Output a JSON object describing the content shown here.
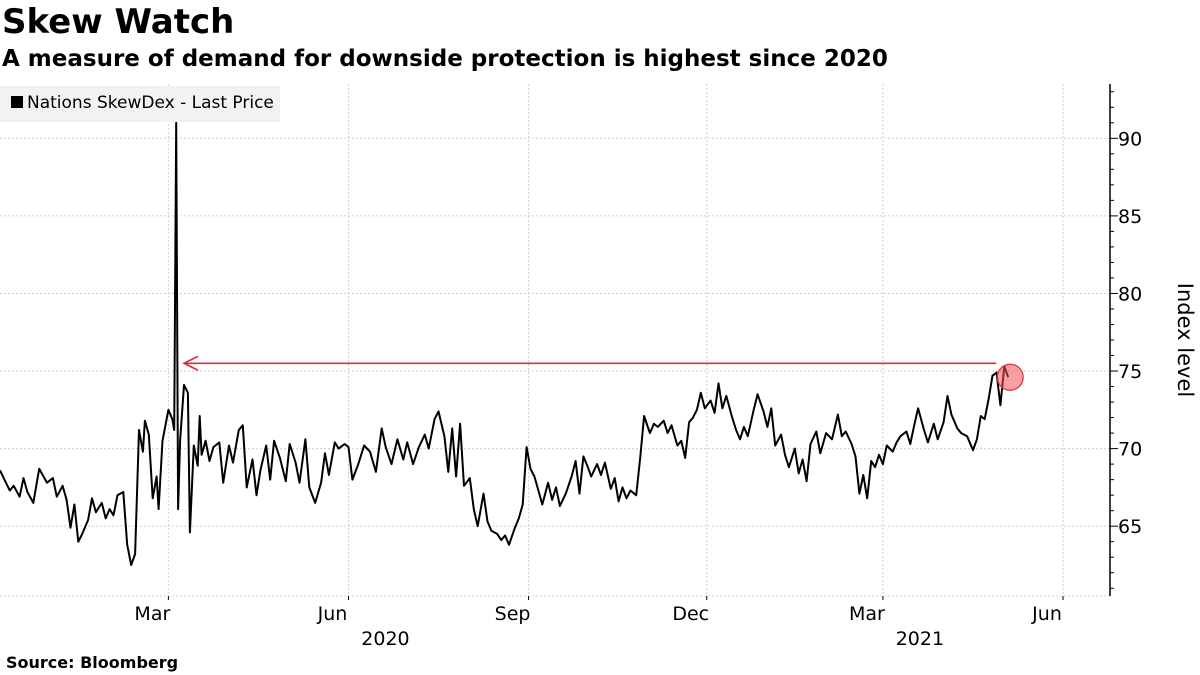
{
  "title": "Skew Watch",
  "subtitle": "A measure of demand for downside protection is highest since 2020",
  "source": "Source: Bloomberg",
  "chart_data": {
    "type": "line",
    "ylabel": "Index level",
    "ylim": [
      60.5,
      93.5
    ],
    "yticks": [
      65,
      70,
      75,
      80,
      85,
      90
    ],
    "xlim": [
      "2019-12-06",
      "2021-06-25"
    ],
    "xticks": [
      {
        "date": "2020-03-01",
        "label": "Mar"
      },
      {
        "date": "2020-06-01",
        "label": "Jun"
      },
      {
        "date": "2020-09-01",
        "label": "Sep"
      },
      {
        "date": "2020-12-01",
        "label": "Dec"
      },
      {
        "date": "2021-03-01",
        "label": "Mar"
      },
      {
        "date": "2021-06-01",
        "label": "Jun"
      }
    ],
    "year_labels": [
      {
        "date": "2020-06-01",
        "label": "2020"
      },
      {
        "date": "2021-03-01",
        "label": "2021"
      }
    ],
    "grid": true,
    "legend_position": "top-left",
    "series": [
      {
        "name": "Nations SkewDex - Last Price",
        "color": "#000000",
        "points": [
          [
            "2019-12-06",
            68.6
          ],
          [
            "2019-12-09",
            67.8
          ],
          [
            "2019-12-11",
            67.3
          ],
          [
            "2019-12-13",
            67.6
          ],
          [
            "2019-12-16",
            66.9
          ],
          [
            "2019-12-18",
            68.1
          ],
          [
            "2019-12-20",
            67.2
          ],
          [
            "2019-12-23",
            66.5
          ],
          [
            "2019-12-26",
            68.7
          ],
          [
            "2019-12-30",
            67.8
          ],
          [
            "2020-01-02",
            68.1
          ],
          [
            "2020-01-04",
            66.9
          ],
          [
            "2020-01-07",
            67.6
          ],
          [
            "2020-01-09",
            66.7
          ],
          [
            "2020-01-11",
            64.9
          ],
          [
            "2020-01-13",
            66.4
          ],
          [
            "2020-01-15",
            64.0
          ],
          [
            "2020-01-17",
            64.5
          ],
          [
            "2020-01-20",
            65.4
          ],
          [
            "2020-01-22",
            66.8
          ],
          [
            "2020-01-24",
            65.9
          ],
          [
            "2020-01-27",
            66.5
          ],
          [
            "2020-01-29",
            65.5
          ],
          [
            "2020-01-31",
            66.1
          ],
          [
            "2020-02-02",
            65.7
          ],
          [
            "2020-02-04",
            67.0
          ],
          [
            "2020-02-07",
            67.2
          ],
          [
            "2020-02-09",
            63.8
          ],
          [
            "2020-02-11",
            62.5
          ],
          [
            "2020-02-13",
            63.2
          ],
          [
            "2020-02-15",
            71.2
          ],
          [
            "2020-02-17",
            69.8
          ],
          [
            "2020-02-18",
            71.8
          ],
          [
            "2020-02-20",
            70.9
          ],
          [
            "2020-02-22",
            66.8
          ],
          [
            "2020-02-24",
            68.2
          ],
          [
            "2020-02-25",
            66.1
          ],
          [
            "2020-02-27",
            70.5
          ],
          [
            "2020-03-01",
            72.5
          ],
          [
            "2020-03-03",
            71.9
          ],
          [
            "2020-03-04",
            71.2
          ],
          [
            "2020-03-05",
            91.0
          ],
          [
            "2020-03-06",
            66.1
          ],
          [
            "2020-03-07",
            70.5
          ],
          [
            "2020-03-09",
            74.1
          ],
          [
            "2020-03-11",
            73.6
          ],
          [
            "2020-03-12",
            64.6
          ],
          [
            "2020-03-14",
            70.2
          ],
          [
            "2020-03-16",
            68.9
          ],
          [
            "2020-03-17",
            72.1
          ],
          [
            "2020-03-18",
            69.6
          ],
          [
            "2020-03-20",
            70.5
          ],
          [
            "2020-03-22",
            69.2
          ],
          [
            "2020-03-24",
            70.1
          ],
          [
            "2020-03-27",
            70.4
          ],
          [
            "2020-03-29",
            67.8
          ],
          [
            "2020-04-01",
            70.2
          ],
          [
            "2020-04-03",
            69.1
          ],
          [
            "2020-04-06",
            71.2
          ],
          [
            "2020-04-08",
            71.5
          ],
          [
            "2020-04-10",
            67.5
          ],
          [
            "2020-04-13",
            69.3
          ],
          [
            "2020-04-15",
            67.0
          ],
          [
            "2020-04-17",
            68.6
          ],
          [
            "2020-04-20",
            70.2
          ],
          [
            "2020-04-22",
            68.0
          ],
          [
            "2020-04-24",
            70.5
          ],
          [
            "2020-04-27",
            69.4
          ],
          [
            "2020-04-30",
            67.9
          ],
          [
            "2020-05-02",
            70.3
          ],
          [
            "2020-05-05",
            69.1
          ],
          [
            "2020-05-07",
            67.8
          ],
          [
            "2020-05-10",
            70.6
          ],
          [
            "2020-05-12",
            67.5
          ],
          [
            "2020-05-15",
            66.5
          ],
          [
            "2020-05-18",
            67.8
          ],
          [
            "2020-05-20",
            69.7
          ],
          [
            "2020-05-22",
            68.3
          ],
          [
            "2020-05-25",
            70.4
          ],
          [
            "2020-05-27",
            70.0
          ],
          [
            "2020-05-30",
            70.3
          ],
          [
            "2020-06-01",
            70.1
          ],
          [
            "2020-06-03",
            68.0
          ],
          [
            "2020-06-06",
            69.0
          ],
          [
            "2020-06-09",
            70.2
          ],
          [
            "2020-06-12",
            69.8
          ],
          [
            "2020-06-15",
            68.5
          ],
          [
            "2020-06-18",
            71.3
          ],
          [
            "2020-06-20",
            70.1
          ],
          [
            "2020-06-23",
            69.0
          ],
          [
            "2020-06-26",
            70.6
          ],
          [
            "2020-06-29",
            69.3
          ],
          [
            "2020-07-01",
            70.4
          ],
          [
            "2020-07-04",
            69.0
          ],
          [
            "2020-07-07",
            70.1
          ],
          [
            "2020-07-10",
            70.9
          ],
          [
            "2020-07-12",
            70.0
          ],
          [
            "2020-07-15",
            71.9
          ],
          [
            "2020-07-17",
            72.4
          ],
          [
            "2020-07-20",
            70.8
          ],
          [
            "2020-07-22",
            68.5
          ],
          [
            "2020-07-24",
            71.3
          ],
          [
            "2020-07-26",
            68.2
          ],
          [
            "2020-07-28",
            71.6
          ],
          [
            "2020-07-30",
            67.6
          ],
          [
            "2020-08-02",
            68.1
          ],
          [
            "2020-08-04",
            66.1
          ],
          [
            "2020-08-06",
            65.0
          ],
          [
            "2020-08-09",
            67.1
          ],
          [
            "2020-08-11",
            65.3
          ],
          [
            "2020-08-13",
            64.7
          ],
          [
            "2020-08-16",
            64.5
          ],
          [
            "2020-08-18",
            64.1
          ],
          [
            "2020-08-20",
            64.4
          ],
          [
            "2020-08-22",
            63.8
          ],
          [
            "2020-08-25",
            64.9
          ],
          [
            "2020-08-27",
            65.5
          ],
          [
            "2020-08-29",
            66.4
          ],
          [
            "2020-08-31",
            70.1
          ],
          [
            "2020-09-02",
            68.7
          ],
          [
            "2020-09-04",
            68.2
          ],
          [
            "2020-09-06",
            67.3
          ],
          [
            "2020-09-08",
            66.4
          ],
          [
            "2020-09-11",
            67.8
          ],
          [
            "2020-09-13",
            66.7
          ],
          [
            "2020-09-15",
            67.5
          ],
          [
            "2020-09-17",
            66.3
          ],
          [
            "2020-09-20",
            67.1
          ],
          [
            "2020-09-23",
            68.2
          ],
          [
            "2020-09-25",
            69.2
          ],
          [
            "2020-09-27",
            67.1
          ],
          [
            "2020-09-29",
            69.5
          ],
          [
            "2020-10-01",
            68.9
          ],
          [
            "2020-10-03",
            68.2
          ],
          [
            "2020-10-06",
            69.0
          ],
          [
            "2020-10-08",
            68.3
          ],
          [
            "2020-10-10",
            69.1
          ],
          [
            "2020-10-13",
            67.4
          ],
          [
            "2020-10-15",
            68.1
          ],
          [
            "2020-10-17",
            66.6
          ],
          [
            "2020-10-19",
            67.5
          ],
          [
            "2020-10-21",
            66.8
          ],
          [
            "2020-10-23",
            67.3
          ],
          [
            "2020-10-26",
            67.0
          ],
          [
            "2020-10-28",
            69.4
          ],
          [
            "2020-10-30",
            72.1
          ],
          [
            "2020-11-02",
            71.0
          ],
          [
            "2020-11-04",
            71.6
          ],
          [
            "2020-11-06",
            71.4
          ],
          [
            "2020-11-09",
            71.8
          ],
          [
            "2020-11-11",
            71.0
          ],
          [
            "2020-11-13",
            71.5
          ],
          [
            "2020-11-16",
            70.2
          ],
          [
            "2020-11-18",
            70.5
          ],
          [
            "2020-11-20",
            69.4
          ],
          [
            "2020-11-22",
            71.7
          ],
          [
            "2020-11-24",
            72.0
          ],
          [
            "2020-11-26",
            72.5
          ],
          [
            "2020-11-28",
            73.6
          ],
          [
            "2020-11-30",
            72.6
          ],
          [
            "2020-12-03",
            73.1
          ],
          [
            "2020-12-05",
            72.3
          ],
          [
            "2020-12-07",
            74.2
          ],
          [
            "2020-12-09",
            72.6
          ],
          [
            "2020-12-11",
            73.4
          ],
          [
            "2020-12-14",
            72.0
          ],
          [
            "2020-12-16",
            71.2
          ],
          [
            "2020-12-18",
            70.6
          ],
          [
            "2020-12-20",
            71.4
          ],
          [
            "2020-12-22",
            70.8
          ],
          [
            "2020-12-25",
            72.5
          ],
          [
            "2020-12-27",
            73.5
          ],
          [
            "2020-12-30",
            72.4
          ],
          [
            "2021-01-01",
            71.4
          ],
          [
            "2021-01-03",
            72.6
          ],
          [
            "2021-01-05",
            70.2
          ],
          [
            "2021-01-08",
            70.9
          ],
          [
            "2021-01-10",
            69.6
          ],
          [
            "2021-01-12",
            68.8
          ],
          [
            "2021-01-15",
            70.0
          ],
          [
            "2021-01-17",
            68.4
          ],
          [
            "2021-01-19",
            69.3
          ],
          [
            "2021-01-21",
            67.9
          ],
          [
            "2021-01-23",
            70.3
          ],
          [
            "2021-01-26",
            71.1
          ],
          [
            "2021-01-28",
            69.7
          ],
          [
            "2021-01-31",
            71.0
          ],
          [
            "2021-02-03",
            70.6
          ],
          [
            "2021-02-06",
            72.2
          ],
          [
            "2021-02-08",
            70.8
          ],
          [
            "2021-02-10",
            71.1
          ],
          [
            "2021-02-13",
            70.3
          ],
          [
            "2021-02-15",
            69.5
          ],
          [
            "2021-02-17",
            67.1
          ],
          [
            "2021-02-19",
            68.3
          ],
          [
            "2021-02-21",
            66.8
          ],
          [
            "2021-02-23",
            69.2
          ],
          [
            "2021-02-25",
            68.8
          ],
          [
            "2021-02-27",
            69.6
          ],
          [
            "2021-03-01",
            69.0
          ],
          [
            "2021-03-03",
            70.2
          ],
          [
            "2021-03-06",
            69.8
          ],
          [
            "2021-03-08",
            70.4
          ],
          [
            "2021-03-10",
            70.8
          ],
          [
            "2021-03-13",
            71.1
          ],
          [
            "2021-03-15",
            70.3
          ],
          [
            "2021-03-17",
            71.5
          ],
          [
            "2021-03-19",
            72.6
          ],
          [
            "2021-03-22",
            71.2
          ],
          [
            "2021-03-24",
            70.4
          ],
          [
            "2021-03-27",
            71.6
          ],
          [
            "2021-03-29",
            70.6
          ],
          [
            "2021-04-01",
            71.7
          ],
          [
            "2021-04-03",
            73.4
          ],
          [
            "2021-04-05",
            72.2
          ],
          [
            "2021-04-08",
            71.3
          ],
          [
            "2021-04-10",
            71.0
          ],
          [
            "2021-04-13",
            70.8
          ],
          [
            "2021-04-16",
            69.9
          ],
          [
            "2021-04-18",
            70.6
          ],
          [
            "2021-04-20",
            72.1
          ],
          [
            "2021-04-22",
            71.9
          ],
          [
            "2021-04-24",
            73.2
          ],
          [
            "2021-04-26",
            74.7
          ],
          [
            "2021-04-28",
            74.9
          ],
          [
            "2021-04-30",
            72.8
          ],
          [
            "2021-05-02",
            75.3
          ],
          [
            "2021-05-04",
            74.6
          ]
        ]
      }
    ],
    "annotation": {
      "type": "arrow",
      "from_date": "2021-05-04",
      "to_date": "2020-03-09",
      "value": 75.5,
      "color": "#d9303f"
    }
  }
}
